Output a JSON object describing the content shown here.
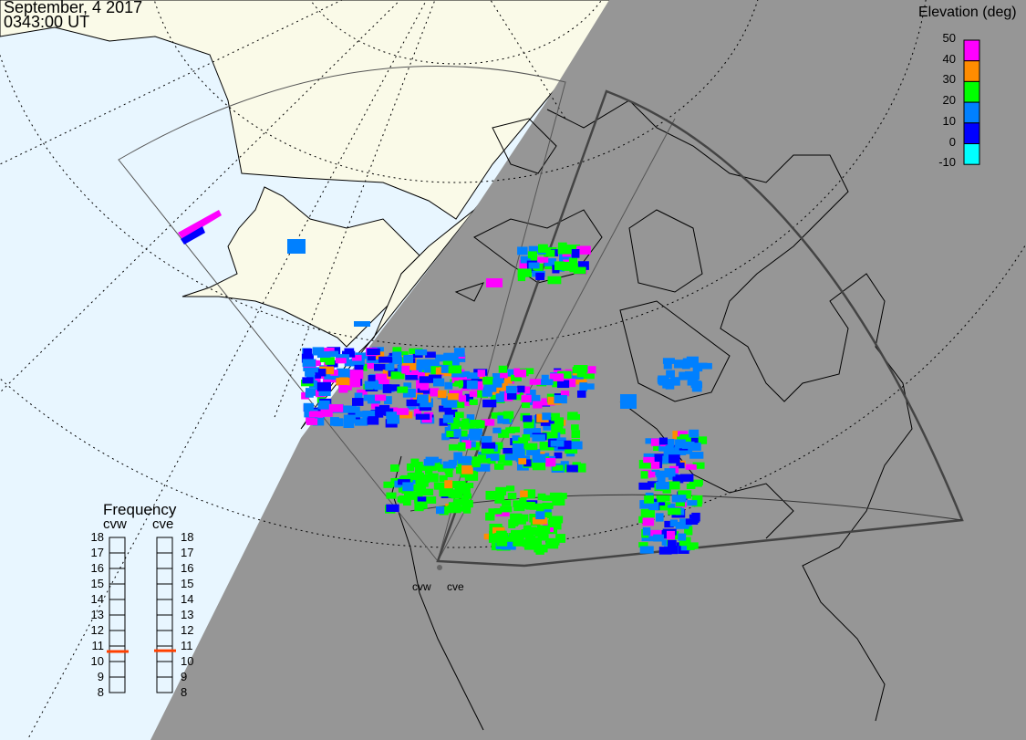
{
  "header": {
    "date": "September, 4 2017",
    "time": "0343:00 UT"
  },
  "elevation_legend": {
    "title": "Elevation (deg)",
    "ticks": [
      "50",
      "40",
      "30",
      "20",
      "10",
      "0",
      "-10"
    ],
    "colors": [
      "#ff00ff",
      "#ff8c00",
      "#00ff00",
      "#0080ff",
      "#0000ff",
      "#00ffff"
    ]
  },
  "frequency_panel": {
    "title": "Frequency",
    "radars": [
      {
        "name": "cvw",
        "frequency_mhz": 10.65
      },
      {
        "name": "cve",
        "frequency_mhz": 10.7
      }
    ],
    "ticks": [
      "18",
      "17",
      "16",
      "15",
      "14",
      "13",
      "12",
      "11",
      "10",
      "9",
      "8"
    ],
    "marker_color": "#ff4000"
  },
  "map": {
    "radar_labels": [
      "cvw",
      "cve"
    ],
    "colors": {
      "ocean_day": "#e8f6ff",
      "land_day": "#fafae8",
      "night": "#969696"
    }
  }
}
